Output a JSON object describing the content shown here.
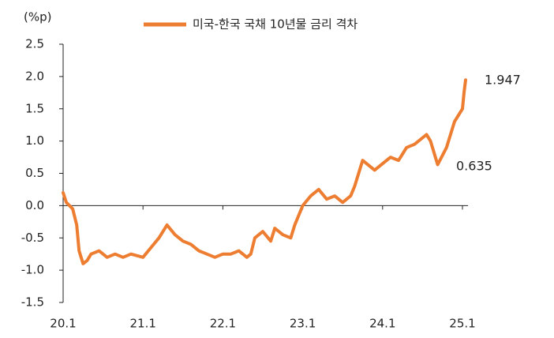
{
  "chart_data": {
    "type": "line",
    "y_label": "(%p)",
    "x": [
      2020.0,
      2020.04,
      2020.08,
      2020.12,
      2020.17,
      2020.2,
      2020.25,
      2020.3,
      2020.35,
      2020.45,
      2020.55,
      2020.65,
      2020.75,
      2020.85,
      2021.0,
      2021.1,
      2021.2,
      2021.3,
      2021.4,
      2021.5,
      2021.6,
      2021.7,
      2021.8,
      2021.9,
      2022.0,
      2022.1,
      2022.2,
      2022.3,
      2022.35,
      2022.4,
      2022.5,
      2022.6,
      2022.65,
      2022.75,
      2022.85,
      2022.9,
      2023.0,
      2023.1,
      2023.2,
      2023.3,
      2023.4,
      2023.5,
      2023.6,
      2023.65,
      2023.75,
      2023.9,
      2024.0,
      2024.1,
      2024.2,
      2024.3,
      2024.4,
      2024.5,
      2024.55,
      2024.6,
      2024.69,
      2024.8,
      2024.9,
      2025.0,
      2025.02,
      2025.04
    ],
    "series": [
      {
        "name": "미국-한국 국채 10년물 금리 격차",
        "color": "#ed7d31",
        "values": [
          0.2,
          0.05,
          0.0,
          -0.05,
          -0.3,
          -0.7,
          -0.9,
          -0.85,
          -0.75,
          -0.7,
          -0.8,
          -0.75,
          -0.8,
          -0.75,
          -0.8,
          -0.65,
          -0.5,
          -0.3,
          -0.45,
          -0.55,
          -0.6,
          -0.7,
          -0.75,
          -0.8,
          -0.75,
          -0.75,
          -0.7,
          -0.8,
          -0.75,
          -0.5,
          -0.4,
          -0.55,
          -0.35,
          -0.45,
          -0.5,
          -0.3,
          0.0,
          0.15,
          0.25,
          0.1,
          0.15,
          0.05,
          0.15,
          0.3,
          0.7,
          0.55,
          0.65,
          0.75,
          0.7,
          0.9,
          0.95,
          1.05,
          1.1,
          1.0,
          0.635,
          0.9,
          1.3,
          1.5,
          1.75,
          1.947
        ]
      }
    ],
    "annotations": [
      "1.947",
      "0.635"
    ],
    "ylim": [
      -1.5,
      2.5
    ],
    "yticks": [
      {
        "value": -1.5,
        "label": "-1.5"
      },
      {
        "value": -1.0,
        "label": "-1.0"
      },
      {
        "value": -0.5,
        "label": "-0.5"
      },
      {
        "value": 0,
        "label": "0.0"
      },
      {
        "value": 0.5,
        "label": "0.5"
      },
      {
        "value": 1.0,
        "label": "1.0"
      },
      {
        "value": 1.5,
        "label": "1.5"
      },
      {
        "value": 2.0,
        "label": "2.0"
      },
      {
        "value": 2.5,
        "label": "2.5"
      }
    ],
    "xlim": [
      2020.0,
      2025.05
    ],
    "xticks": [
      {
        "value": 2020,
        "label": "20.1"
      },
      {
        "value": 2021,
        "label": "21.1"
      },
      {
        "value": 2022,
        "label": "22.1"
      },
      {
        "value": 2023,
        "label": "23.1"
      },
      {
        "value": 2024,
        "label": "24.1"
      },
      {
        "value": 2025,
        "label": "25.1"
      }
    ]
  }
}
